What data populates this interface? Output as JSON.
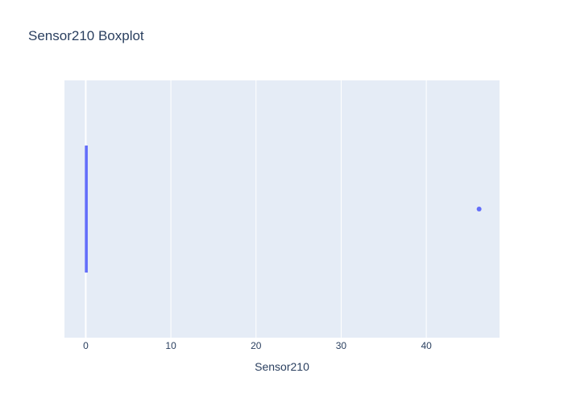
{
  "chart_data": {
    "type": "box",
    "title": "Sensor210 Boxplot",
    "xlabel": "Sensor210",
    "ylabel": "",
    "orientation": "horizontal",
    "xlim": [
      -2.5,
      48.6
    ],
    "xticks": [
      0,
      10,
      20,
      30,
      40
    ],
    "xtick_labels": [
      "0",
      "10",
      "20",
      "30",
      "40"
    ],
    "grid": true,
    "legend": "none",
    "series": [
      {
        "lowerfence": 0,
        "q1": 0,
        "median": 0,
        "q3": 0,
        "upperfence": 0,
        "outliers": [
          46.2
        ]
      }
    ],
    "colors": {
      "plot_background": "#e5ecf6",
      "grid": "#ffffff",
      "box": "#636efa",
      "text": "#2a3f5f"
    }
  }
}
